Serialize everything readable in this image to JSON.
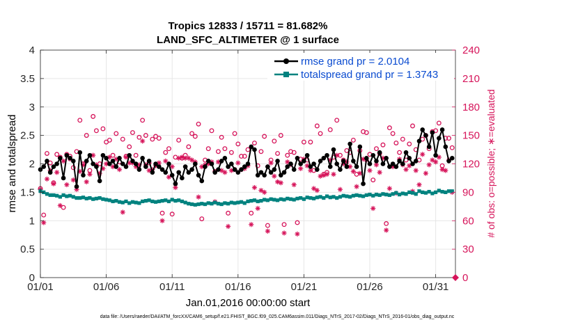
{
  "chart_data": {
    "type": "line",
    "title": "Tropics 12833 / 15711 = 81.682%",
    "subtitle": "LAND_SFC_ALTIMETER @ 1 surface",
    "xlabel": "Jan.01,2016 00:00:00 start",
    "ylabel": "rmse and totalspread",
    "ylabel_right": "# of obs: o=possible; ∗=evaluated",
    "xlim": [
      0,
      31.5
    ],
    "ylim": [
      0,
      4
    ],
    "ylim_right": [
      0,
      240
    ],
    "x_ticks": [
      0,
      5,
      10,
      15,
      20,
      25,
      30
    ],
    "x_tick_labels": [
      "01/01",
      "01/06",
      "01/11",
      "01/16",
      "01/21",
      "01/26",
      "01/31"
    ],
    "y_ticks": [
      0,
      0.5,
      1,
      1.5,
      2,
      2.5,
      3,
      3.5,
      4
    ],
    "y_tick_labels": [
      "0",
      "0.5",
      "1",
      "1.5",
      "2",
      "2.5",
      "3",
      "3.5",
      "4"
    ],
    "y_right_ticks": [
      0,
      30,
      60,
      90,
      120,
      150,
      180,
      210,
      240
    ],
    "y_right_tick_labels": [
      "0",
      "30",
      "60",
      "90",
      "120",
      "150",
      "180",
      "210",
      "240"
    ],
    "grid": true,
    "legend_position": "top-right",
    "series": [
      {
        "name": "rmse grand pr = 2.0104",
        "color": "#000000",
        "marker": "filled-circle",
        "axis": "left",
        "x": [
          0.0,
          0.25,
          0.5,
          0.75,
          1.0,
          1.25,
          1.5,
          1.75,
          2.0,
          2.25,
          2.5,
          2.75,
          3.0,
          3.25,
          3.5,
          3.75,
          4.0,
          4.25,
          4.5,
          4.75,
          5.0,
          5.25,
          5.5,
          5.75,
          6.0,
          6.25,
          6.5,
          6.75,
          7.0,
          7.25,
          7.5,
          7.75,
          8.0,
          8.25,
          8.5,
          8.75,
          9.0,
          9.25,
          9.5,
          9.75,
          10.0,
          10.25,
          10.5,
          10.75,
          11.0,
          11.25,
          11.5,
          11.75,
          12.0,
          12.25,
          12.5,
          12.75,
          13.0,
          13.25,
          13.5,
          13.75,
          14.0,
          14.25,
          14.5,
          14.75,
          15.0,
          15.25,
          15.5,
          15.75,
          16.0,
          16.25,
          16.5,
          16.75,
          17.0,
          17.25,
          17.5,
          17.75,
          18.0,
          18.25,
          18.5,
          18.75,
          19.0,
          19.25,
          19.5,
          19.75,
          20.0,
          20.25,
          20.5,
          20.75,
          21.0,
          21.25,
          21.5,
          21.75,
          22.0,
          22.25,
          22.5,
          22.75,
          23.0,
          23.25,
          23.5,
          23.75,
          24.0,
          24.25,
          24.5,
          24.75,
          25.0,
          25.25,
          25.5,
          25.75,
          26.0,
          26.25,
          26.5,
          26.75,
          27.0,
          27.25,
          27.5,
          27.75,
          28.0,
          28.25,
          28.5,
          28.75,
          29.0,
          29.25,
          29.5,
          29.75,
          30.0,
          30.25,
          30.5,
          30.75,
          31.0,
          31.25
        ],
        "values": [
          1.9,
          1.95,
          2.05,
          1.85,
          1.95,
          2.0,
          2.1,
          1.75,
          2.15,
          2.1,
          2.05,
          1.6,
          2.2,
          1.8,
          2.05,
          2.15,
          2.0,
          1.95,
          1.7,
          2.15,
          2.1,
          2.0,
          2.05,
          1.95,
          2.1,
          2.0,
          1.95,
          2.15,
          2.05,
          2.0,
          1.9,
          2.1,
          1.95,
          2.05,
          1.85,
          2.0,
          1.95,
          1.9,
          1.85,
          2.0,
          1.8,
          1.65,
          1.85,
          1.75,
          1.95,
          1.85,
          1.9,
          2.0,
          1.8,
          1.7,
          1.95,
          2.05,
          2.0,
          1.85,
          1.9,
          2.05,
          2.1,
          1.95,
          2.0,
          1.9,
          1.85,
          1.9,
          1.95,
          2.0,
          2.3,
          2.25,
          1.8,
          1.85,
          1.8,
          1.95,
          1.85,
          1.9,
          2.05,
          1.8,
          1.85,
          1.95,
          2.0,
          1.9,
          2.1,
          2.0,
          2.05,
          2.15,
          1.95,
          2.0,
          1.9,
          2.05,
          2.1,
          2.15,
          1.95,
          2.25,
          2.0,
          1.9,
          2.05,
          1.95,
          2.35,
          2.05,
          1.95,
          2.3,
          1.65,
          2.1,
          2.0,
          2.15,
          2.05,
          2.2,
          2.0,
          2.1,
          1.95,
          2.0,
          1.95,
          2.05,
          2.0,
          2.2,
          2.1,
          2.0,
          2.05,
          2.4,
          2.6,
          2.5,
          2.3,
          2.55,
          2.15,
          2.45,
          2.6,
          2.3,
          2.05,
          2.1
        ]
      },
      {
        "name": "totalspread grand pr = 1.3743",
        "color": "#00827f",
        "marker": "filled-square",
        "axis": "left",
        "x": [
          0.0,
          0.25,
          0.5,
          0.75,
          1.0,
          1.25,
          1.5,
          1.75,
          2.0,
          2.25,
          2.5,
          2.75,
          3.0,
          3.25,
          3.5,
          3.75,
          4.0,
          4.25,
          4.5,
          4.75,
          5.0,
          5.25,
          5.5,
          5.75,
          6.0,
          6.25,
          6.5,
          6.75,
          7.0,
          7.25,
          7.5,
          7.75,
          8.0,
          8.25,
          8.5,
          8.75,
          9.0,
          9.25,
          9.5,
          9.75,
          10.0,
          10.25,
          10.5,
          10.75,
          11.0,
          11.25,
          11.5,
          11.75,
          12.0,
          12.25,
          12.5,
          12.75,
          13.0,
          13.25,
          13.5,
          13.75,
          14.0,
          14.25,
          14.5,
          14.75,
          15.0,
          15.25,
          15.5,
          15.75,
          16.0,
          16.25,
          16.5,
          16.75,
          17.0,
          17.25,
          17.5,
          17.75,
          18.0,
          18.25,
          18.5,
          18.75,
          19.0,
          19.25,
          19.5,
          19.75,
          20.0,
          20.25,
          20.5,
          20.75,
          21.0,
          21.25,
          21.5,
          21.75,
          22.0,
          22.25,
          22.5,
          22.75,
          23.0,
          23.25,
          23.5,
          23.75,
          24.0,
          24.25,
          24.5,
          24.75,
          25.0,
          25.25,
          25.5,
          25.75,
          26.0,
          26.25,
          26.5,
          26.75,
          27.0,
          27.25,
          27.5,
          27.75,
          28.0,
          28.25,
          28.5,
          28.75,
          29.0,
          29.25,
          29.5,
          29.75,
          30.0,
          30.25,
          30.5,
          30.75,
          31.0,
          31.25
        ],
        "values": [
          1.52,
          1.5,
          1.47,
          1.45,
          1.45,
          1.44,
          1.42,
          1.45,
          1.43,
          1.44,
          1.42,
          1.4,
          1.4,
          1.41,
          1.39,
          1.4,
          1.38,
          1.39,
          1.4,
          1.38,
          1.37,
          1.36,
          1.34,
          1.35,
          1.33,
          1.32,
          1.34,
          1.31,
          1.33,
          1.32,
          1.31,
          1.34,
          1.35,
          1.36,
          1.34,
          1.33,
          1.34,
          1.35,
          1.36,
          1.34,
          1.37,
          1.35,
          1.36,
          1.34,
          1.32,
          1.3,
          1.29,
          1.28,
          1.29,
          1.3,
          1.29,
          1.31,
          1.3,
          1.32,
          1.3,
          1.29,
          1.31,
          1.3,
          1.32,
          1.31,
          1.32,
          1.33,
          1.31,
          1.34,
          1.35,
          1.36,
          1.34,
          1.35,
          1.37,
          1.36,
          1.38,
          1.37,
          1.36,
          1.38,
          1.37,
          1.39,
          1.38,
          1.37,
          1.39,
          1.4,
          1.38,
          1.41,
          1.4,
          1.39,
          1.41,
          1.42,
          1.4,
          1.43,
          1.41,
          1.42,
          1.4,
          1.42,
          1.44,
          1.43,
          1.42,
          1.44,
          1.45,
          1.44,
          1.43,
          1.45,
          1.46,
          1.44,
          1.46,
          1.45,
          1.47,
          1.46,
          1.45,
          1.47,
          1.49,
          1.46,
          1.48,
          1.47,
          1.5,
          1.49,
          1.47,
          1.52,
          1.5,
          1.49,
          1.51,
          1.48,
          1.5,
          1.53,
          1.51,
          1.5,
          1.52,
          1.52
        ]
      },
      {
        "name": "# of obs possible",
        "color": "#d6145a",
        "marker": "open-circle",
        "axis": "right",
        "x": [
          0.0,
          0.25,
          0.5,
          0.75,
          1.0,
          1.25,
          1.5,
          1.75,
          2.0,
          2.25,
          2.5,
          2.75,
          3.0,
          3.25,
          3.5,
          3.75,
          4.0,
          4.25,
          4.5,
          4.75,
          5.0,
          5.25,
          5.5,
          5.75,
          6.0,
          6.25,
          6.5,
          6.75,
          7.0,
          7.25,
          7.5,
          7.75,
          8.0,
          8.25,
          8.5,
          8.75,
          9.0,
          9.25,
          9.5,
          9.75,
          10.0,
          10.25,
          10.5,
          10.75,
          11.0,
          11.25,
          11.5,
          11.75,
          12.0,
          12.25,
          12.5,
          12.75,
          13.0,
          13.25,
          13.5,
          13.75,
          14.0,
          14.25,
          14.5,
          14.75,
          15.0,
          15.25,
          15.5,
          15.75,
          16.0,
          16.25,
          16.5,
          16.75,
          17.0,
          17.25,
          17.5,
          17.75,
          18.0,
          18.25,
          18.5,
          18.75,
          19.0,
          19.25,
          19.5,
          19.75,
          20.0,
          20.25,
          20.5,
          20.75,
          21.0,
          21.25,
          21.5,
          21.75,
          22.0,
          22.25,
          22.5,
          22.75,
          23.0,
          23.25,
          23.5,
          23.75,
          24.0,
          24.25,
          24.5,
          24.75,
          25.0,
          25.25,
          25.5,
          25.75,
          26.0,
          26.25,
          26.5,
          26.75,
          27.0,
          27.25,
          27.5,
          27.75,
          28.0,
          28.25,
          28.5,
          28.75,
          29.0,
          29.25,
          29.5,
          29.75,
          30.0,
          30.25,
          30.5,
          30.75,
          31.0,
          31.25
        ],
        "values": [
          94,
          66,
          131,
          121,
          100,
          130,
          127,
          74,
          130,
          128,
          116,
          133,
          166,
          120,
          150,
          113,
          170,
          155,
          120,
          157,
          143,
          145,
          129,
          152,
          122,
          146,
          128,
          138,
          153,
          129,
          148,
          166,
          150,
          121,
          146,
          149,
          147,
          68,
          132,
          136,
          67,
          127,
          145,
          126,
          129,
          138,
          152,
          149,
          162,
          62,
          124,
          136,
          155,
          112,
          133,
          148,
          136,
          68,
          132,
          152,
          141,
          128,
          128,
          135,
          68,
          142,
          118,
          133,
          149,
          55,
          124,
          144,
          131,
          150,
          56,
          129,
          133,
          132,
          58,
          125,
          143,
          124,
          143,
          113,
          160,
          152,
          109,
          111,
          156,
          127,
          166,
          129,
          124,
          134,
          132,
          145,
          109,
          134,
          154,
          153,
          130,
          103,
          136,
          131,
          140,
          57,
          158,
          152,
          142,
          132,
          146,
          124,
          141,
          160,
          135,
          124,
          146,
          150,
          136,
          154,
          155,
          163,
          118,
          147,
          147,
          137
        ]
      },
      {
        "name": "# of obs evaluated",
        "color": "#d6145a",
        "marker": "asterisk",
        "axis": "right",
        "x": [
          0.0,
          0.25,
          0.5,
          0.75,
          1.0,
          1.25,
          1.5,
          1.75,
          2.0,
          2.25,
          2.5,
          2.75,
          3.0,
          3.25,
          3.5,
          3.75,
          4.0,
          4.25,
          4.5,
          4.75,
          5.0,
          5.25,
          5.5,
          5.75,
          6.0,
          6.25,
          6.5,
          6.75,
          7.0,
          7.25,
          7.5,
          7.75,
          8.0,
          8.25,
          8.5,
          8.75,
          9.0,
          9.25,
          9.5,
          9.75,
          10.0,
          10.25,
          10.5,
          10.75,
          11.0,
          11.25,
          11.5,
          11.75,
          12.0,
          12.25,
          12.5,
          12.75,
          13.0,
          13.25,
          13.5,
          13.75,
          14.0,
          14.25,
          14.5,
          14.75,
          15.0,
          15.25,
          15.5,
          15.75,
          16.0,
          16.25,
          16.5,
          16.75,
          17.0,
          17.25,
          17.5,
          17.75,
          18.0,
          18.25,
          18.5,
          18.75,
          19.0,
          19.25,
          19.5,
          19.75,
          20.0,
          20.25,
          20.5,
          20.75,
          21.0,
          21.25,
          21.5,
          21.75,
          22.0,
          22.25,
          22.5,
          22.75,
          23.0,
          23.25,
          23.5,
          23.75,
          24.0,
          24.25,
          24.5,
          24.75,
          25.0,
          25.25,
          25.5,
          25.75,
          26.0,
          26.25,
          26.5,
          26.75,
          27.0,
          27.25,
          27.5,
          27.75,
          28.0,
          28.25,
          28.5,
          28.75,
          29.0,
          29.25,
          29.5,
          29.75,
          30.0,
          30.25,
          30.5,
          30.75,
          31.0,
          31.25
        ],
        "values": [
          93,
          58,
          104,
          113,
          99,
          111,
          76,
          123,
          98,
          125,
          103,
          93,
          112,
          119,
          101,
          109,
          129,
          119,
          110,
          115,
          120,
          127,
          117,
          125,
          114,
          69,
          127,
          121,
          121,
          117,
          119,
          144,
          119,
          113,
          114,
          118,
          121,
          60,
          123,
          106,
          117,
          95,
          126,
          127,
          126,
          126,
          124,
          122,
          85,
          117,
          119,
          120,
          122,
          80,
          122,
          113,
          111,
          54,
          113,
          114,
          121,
          114,
          115,
          118,
          56,
          95,
          73,
          92,
          90,
          49,
          121,
          107,
          101,
          100,
          47,
          122,
          119,
          98,
          46,
          115,
          125,
          118,
          113,
          94,
          92,
          107,
          108,
          109,
          124,
          109,
          129,
          93,
          120,
          122,
          117,
          112,
          96,
          110,
          125,
          124,
          113,
          73,
          119,
          111,
          126,
          50,
          94,
          117,
          89,
          125,
          119,
          114,
          118,
          91,
          113,
          98,
          130,
          110,
          119,
          124,
          122,
          127,
          114,
          113,
          124,
          90
        ]
      }
    ],
    "right_axis_zero_marker": "filled-diamond"
  },
  "footer_text": "data file: /Users/raeder/DAI/ATM_forcXX/CAM6_setup/f.e21.FHIST_BGC.f09_025.CAM6assim.011/Diags_NTrS_2017-02/Diags_NTrS_2016-01/obs_diag_output.nc",
  "colors": {
    "rmse": "#000000",
    "spread": "#00827f",
    "obs": "#d6145a",
    "legend_text": "#0a4bd0",
    "grid": "#e6e6e6"
  }
}
